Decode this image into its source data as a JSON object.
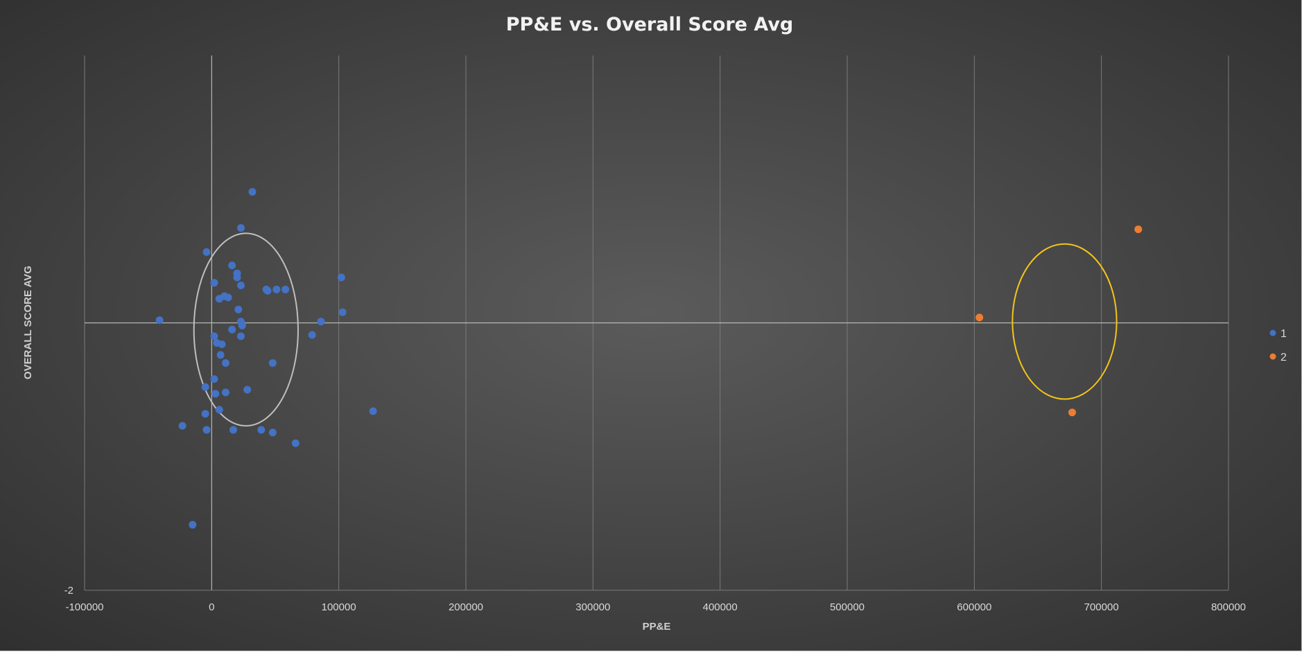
{
  "chart_data": {
    "type": "scatter",
    "title": "PP&E vs. Overall Score Avg",
    "xlabel": "PP&E",
    "ylabel": "OVERALL SCORE AVG",
    "xlim": [
      -100000,
      800000
    ],
    "ylim": [
      -2,
      2
    ],
    "x_ticks": [
      "-100000",
      "0",
      "100000",
      "200000",
      "300000",
      "400000",
      "500000",
      "600000",
      "700000",
      "800000"
    ],
    "y_ticks_visible": [
      "-2"
    ],
    "grid": "vertical",
    "legend_position": "right",
    "series": [
      {
        "name": "1",
        "color": "#4472c4",
        "x": [
          32000,
          23000,
          -4000,
          16000,
          20000,
          20000,
          2000,
          23000,
          43000,
          44000,
          51000,
          58000,
          10000,
          13000,
          6000,
          21000,
          -41000,
          23000,
          86000,
          24000,
          16000,
          2000,
          23000,
          4000,
          8000,
          79000,
          7000,
          48000,
          11000,
          2000,
          -5000,
          28000,
          11000,
          3000,
          6000,
          -5000,
          -23000,
          -4000,
          17000,
          39000,
          48000,
          66000,
          102000,
          103000,
          127000,
          -15000
        ],
        "y": [
          0.98,
          0.71,
          0.53,
          0.43,
          0.37,
          0.34,
          0.3,
          0.28,
          0.25,
          0.24,
          0.25,
          0.25,
          0.2,
          0.19,
          0.18,
          0.1,
          0.02,
          0.01,
          0.01,
          -0.02,
          -0.05,
          -0.1,
          -0.1,
          -0.15,
          -0.16,
          -0.09,
          -0.24,
          -0.3,
          -0.3,
          -0.42,
          -0.48,
          -0.5,
          -0.52,
          -0.53,
          -0.65,
          -0.68,
          -0.77,
          -0.8,
          -0.8,
          -0.8,
          -0.82,
          -0.9,
          0.34,
          0.08,
          -0.66,
          -1.51
        ]
      },
      {
        "name": "2",
        "color": "#ed7d31",
        "x": [
          604000,
          729000,
          677000
        ],
        "y": [
          0.04,
          0.7,
          -0.67
        ]
      }
    ],
    "annotations": [
      {
        "shape": "ellipse",
        "color": "#bfbfbf",
        "cx": 27000,
        "cy": -0.05,
        "rx": 41000,
        "ry": 0.72
      },
      {
        "shape": "ellipse",
        "color": "#f5c518",
        "cx": 671000,
        "cy": 0.01,
        "rx": 41000,
        "ry": 0.58
      }
    ]
  }
}
